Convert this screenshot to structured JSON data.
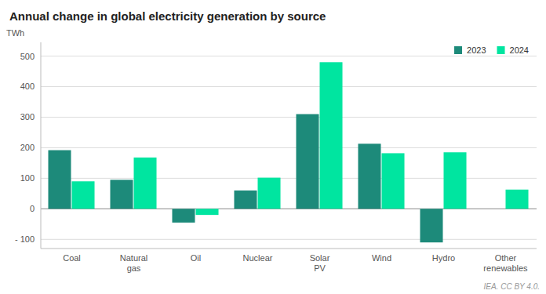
{
  "chart_data": {
    "type": "bar",
    "title": "Annual change in global electricity generation by source",
    "ylabel": "TWh",
    "footnote": "IEA. CC BY 4.0.",
    "categories": [
      "Coal",
      "Natural\ngas",
      "Oil",
      "Nuclear",
      "Solar\nPV",
      "Wind",
      "Hydro",
      "Other\nrenewables"
    ],
    "series": [
      {
        "name": "2023",
        "color": "#1d8a7a",
        "values": [
          192,
          95,
          -45,
          60,
          310,
          213,
          -110,
          0
        ]
      },
      {
        "name": "2024",
        "color": "#00e5a0",
        "values": [
          90,
          168,
          -20,
          102,
          480,
          182,
          185,
          63
        ]
      }
    ],
    "ylim": [
      -130,
      545
    ],
    "yticks": [
      {
        "value": -100,
        "label": "- 100"
      },
      0,
      100,
      200,
      300,
      400,
      500
    ],
    "grid": true,
    "legend": "top-right"
  }
}
